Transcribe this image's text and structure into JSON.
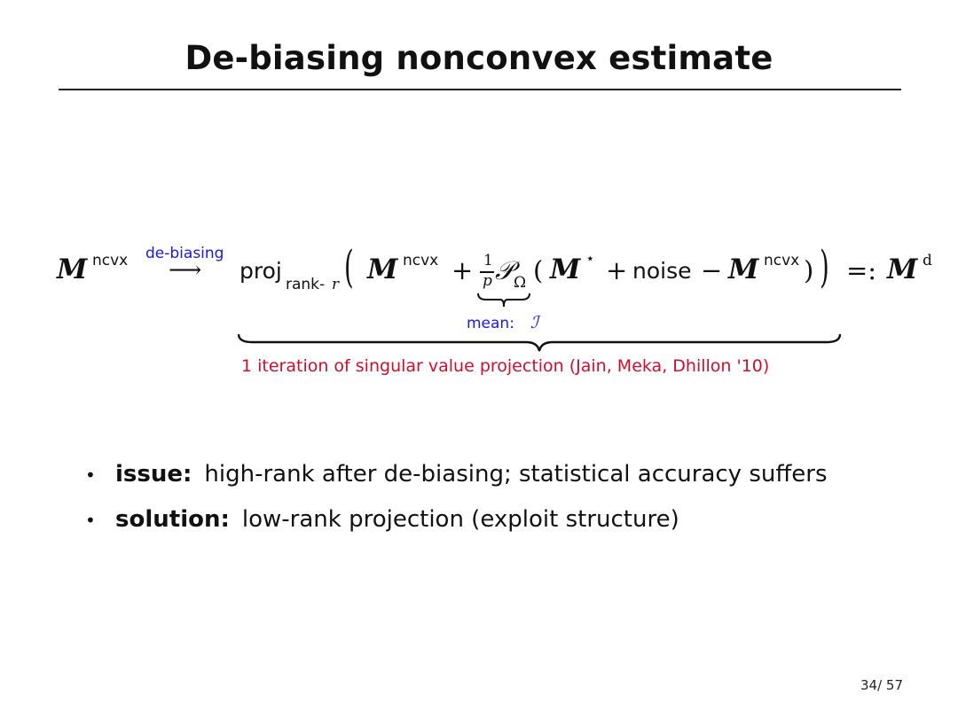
{
  "title": "De-biasing nonconvex estimate",
  "equation": {
    "lhs_symbol": "M",
    "lhs_superscript": "ncvx",
    "arrow_label": "de-biasing",
    "arrow": "⟶",
    "proj_text": "proj",
    "proj_subscript": "rank-",
    "proj_subscript_var": "r",
    "left_paren": "(",
    "inner_symbol": "M",
    "inner_superscript": "ncvx",
    "plus": "+",
    "frac_num": "1",
    "frac_den": "p",
    "operator": "𝒫",
    "operator_subscript": "Ω",
    "open_paren": "(",
    "star_symbol": "M",
    "star_superscript": "⋆",
    "plus2": "+",
    "noise": "noise",
    "minus": "−",
    "last_symbol": "M",
    "last_superscript": "ncvx",
    "close_paren": ")",
    "right_paren": ")",
    "defeq": "=:",
    "rhs_symbol": "M",
    "rhs_superscript": "d",
    "mean_label": "mean: ",
    "mean_symbol": "ℐ",
    "iteration_note": "1 iteration of singular value projection (Jain, Meka, Dhillon '10)"
  },
  "bullets": [
    {
      "marker": "•",
      "head": "issue:",
      "text": "high-rank after de-biasing; statistical accuracy suffers"
    },
    {
      "marker": "•",
      "head": "solution:",
      "text": "low-rank projection (exploit structure)"
    }
  ],
  "page_number": "34/ 57",
  "colors": {
    "accent_blue": "#1a1ad6",
    "accent_red": "#c8102e",
    "text": "#111111"
  }
}
